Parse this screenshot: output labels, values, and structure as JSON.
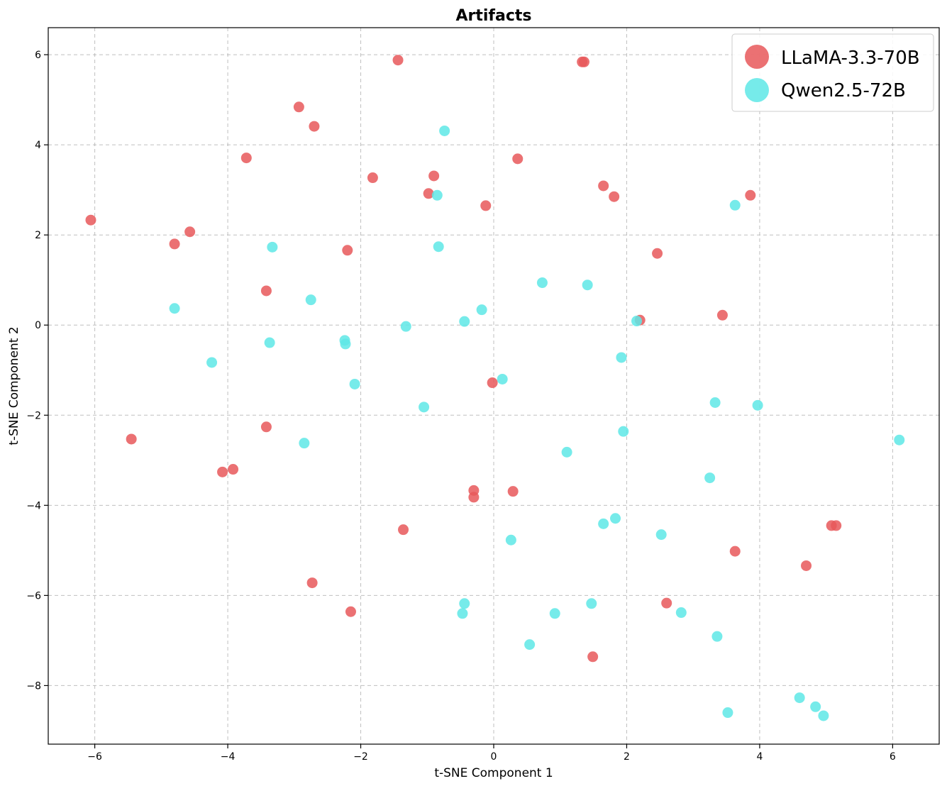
{
  "chart_data": {
    "type": "scatter",
    "title": "Artifacts",
    "xlabel": "t-SNE Component 1",
    "ylabel": "t-SNE Component 2",
    "xlim": [
      -6.7,
      6.7
    ],
    "ylim": [
      -9.3,
      6.6
    ],
    "xticks": [
      -6,
      -4,
      -2,
      0,
      2,
      4,
      6
    ],
    "yticks": [
      -8,
      -6,
      -4,
      -2,
      0,
      2,
      4,
      6
    ],
    "xtick_labels": [
      "−6",
      "−4",
      "−2",
      "0",
      "2",
      "4",
      "6"
    ],
    "ytick_labels": [
      "−8",
      "−6",
      "−4",
      "−2",
      "0",
      "2",
      "4",
      "6"
    ],
    "grid": true,
    "legend_position": "top-right",
    "series": [
      {
        "name": "LLaMA-3.3-70B",
        "color": "#e8585a",
        "points": [
          [
            -6.06,
            2.33
          ],
          [
            -5.45,
            -2.53
          ],
          [
            -4.8,
            1.8
          ],
          [
            -4.57,
            2.07
          ],
          [
            -4.08,
            -3.26
          ],
          [
            -3.92,
            -3.2
          ],
          [
            -3.72,
            3.71
          ],
          [
            -3.42,
            0.76
          ],
          [
            -3.42,
            -2.26
          ],
          [
            -2.93,
            4.84
          ],
          [
            -2.7,
            4.41
          ],
          [
            -2.73,
            -5.72
          ],
          [
            -2.2,
            1.66
          ],
          [
            -2.15,
            -6.36
          ],
          [
            -1.82,
            3.27
          ],
          [
            -1.44,
            5.88
          ],
          [
            -1.36,
            -4.54
          ],
          [
            -0.98,
            2.92
          ],
          [
            -0.9,
            3.31
          ],
          [
            -0.12,
            2.65
          ],
          [
            -0.3,
            -3.67
          ],
          [
            -0.3,
            -3.82
          ],
          [
            -0.02,
            -1.28
          ],
          [
            0.36,
            3.69
          ],
          [
            0.29,
            -3.69
          ],
          [
            1.33,
            5.84
          ],
          [
            1.36,
            5.84
          ],
          [
            1.65,
            3.09
          ],
          [
            1.81,
            2.85
          ],
          [
            1.49,
            -7.36
          ],
          [
            2.2,
            0.11
          ],
          [
            2.46,
            1.59
          ],
          [
            2.6,
            -6.17
          ],
          [
            3.44,
            0.22
          ],
          [
            3.63,
            -5.02
          ],
          [
            3.86,
            2.88
          ],
          [
            4.7,
            -5.34
          ],
          [
            5.08,
            -4.45
          ],
          [
            5.15,
            -4.45
          ]
        ]
      },
      {
        "name": "Qwen2.5-72B",
        "color": "#5ee8e6",
        "points": [
          [
            -4.8,
            0.37
          ],
          [
            -4.24,
            -0.83
          ],
          [
            -3.33,
            1.73
          ],
          [
            -3.37,
            -0.39
          ],
          [
            -2.85,
            -2.62
          ],
          [
            -2.75,
            0.56
          ],
          [
            -2.24,
            -0.34
          ],
          [
            -2.23,
            -0.42
          ],
          [
            -2.09,
            -1.31
          ],
          [
            -1.32,
            -0.03
          ],
          [
            -1.05,
            -1.82
          ],
          [
            -0.85,
            2.88
          ],
          [
            -0.83,
            1.74
          ],
          [
            -0.74,
            4.31
          ],
          [
            -0.44,
            0.08
          ],
          [
            -0.44,
            -6.18
          ],
          [
            -0.47,
            -6.4
          ],
          [
            -0.18,
            0.34
          ],
          [
            0.13,
            -1.2
          ],
          [
            0.26,
            -4.77
          ],
          [
            0.54,
            -7.09
          ],
          [
            0.73,
            0.94
          ],
          [
            0.92,
            -6.4
          ],
          [
            1.1,
            -2.82
          ],
          [
            1.41,
            0.89
          ],
          [
            1.47,
            -6.18
          ],
          [
            1.65,
            -4.41
          ],
          [
            1.83,
            -4.29
          ],
          [
            1.92,
            -0.72
          ],
          [
            1.95,
            -2.36
          ],
          [
            2.15,
            0.09
          ],
          [
            2.52,
            -4.65
          ],
          [
            2.82,
            -6.38
          ],
          [
            3.25,
            -3.39
          ],
          [
            3.33,
            -1.72
          ],
          [
            3.36,
            -6.91
          ],
          [
            3.52,
            -8.6
          ],
          [
            3.63,
            2.66
          ],
          [
            3.97,
            -1.78
          ],
          [
            4.6,
            -8.27
          ],
          [
            4.84,
            -8.47
          ],
          [
            4.96,
            -8.67
          ],
          [
            6.1,
            -2.55
          ]
        ]
      }
    ]
  }
}
